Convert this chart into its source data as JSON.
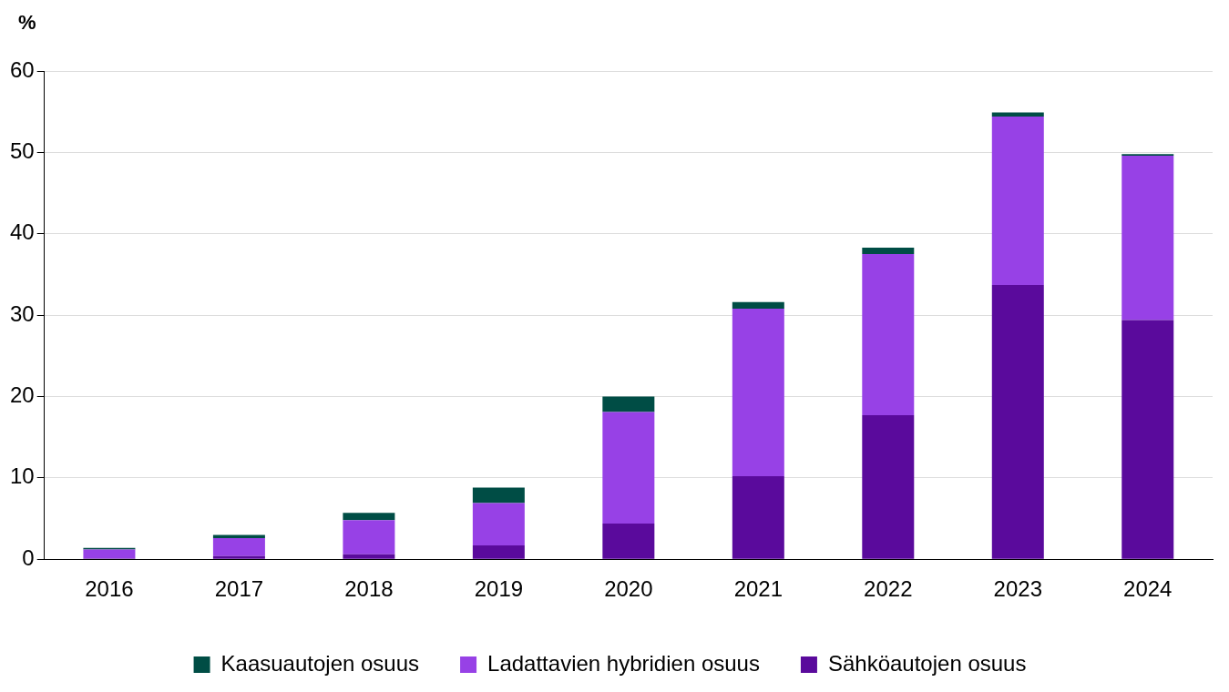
{
  "chart_data": {
    "type": "bar",
    "ylabel": "%",
    "categories": [
      "2016",
      "2017",
      "2018",
      "2019",
      "2020",
      "2021",
      "2022",
      "2023",
      "2024"
    ],
    "series": [
      {
        "name": "Sähköautojen osuus",
        "color": "#5a0a9c",
        "values": [
          0.1,
          0.4,
          0.6,
          1.7,
          4.4,
          10.2,
          17.7,
          33.7,
          29.4
        ]
      },
      {
        "name": "Ladattavien hybridien osuus",
        "color": "#9741e6",
        "values": [
          1.1,
          2.2,
          4.2,
          5.2,
          13.7,
          20.6,
          19.8,
          20.7,
          20.2
        ]
      },
      {
        "name": "Kaasuautojen osuus",
        "color": "#004d45",
        "values": [
          0.2,
          0.4,
          0.9,
          1.9,
          1.9,
          0.8,
          0.8,
          0.5,
          0.2
        ]
      }
    ],
    "stacked": true,
    "ylim": [
      0,
      60
    ],
    "yticks": [
      0,
      10,
      20,
      30,
      40,
      50,
      60
    ],
    "grid": "y",
    "legend": "bottom"
  }
}
